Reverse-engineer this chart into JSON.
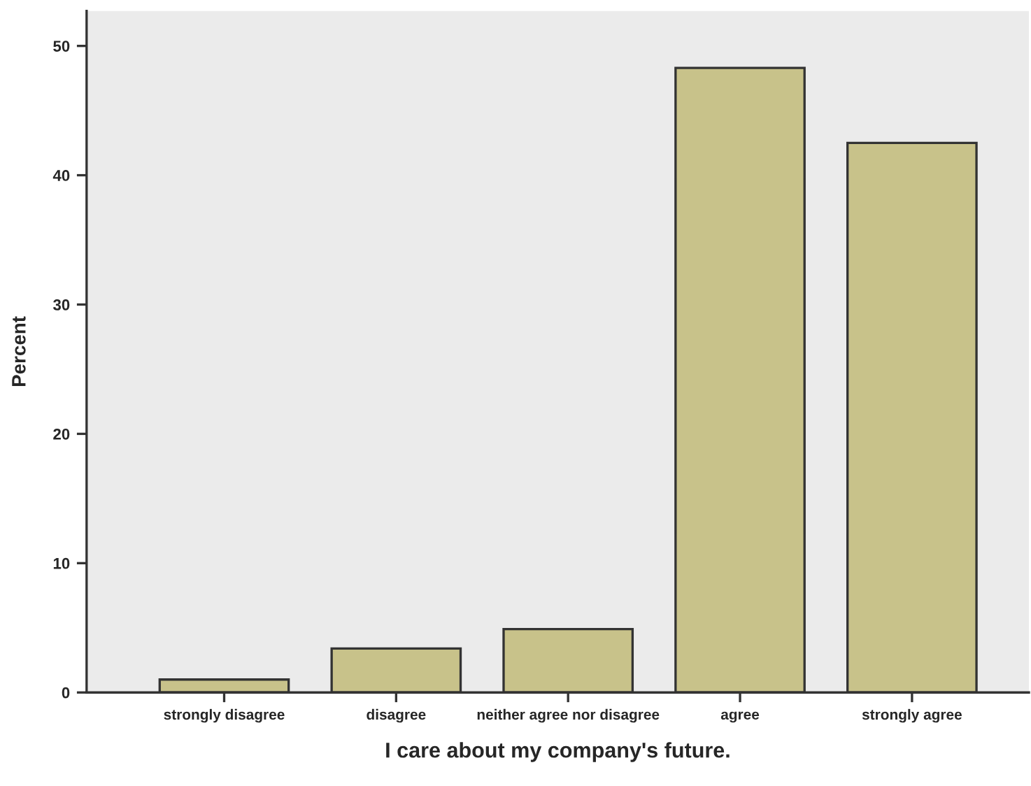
{
  "chart_data": {
    "type": "bar",
    "xlabel": "I care about my company's future.",
    "ylabel": "Percent",
    "categories": [
      "strongly disagree",
      "disagree",
      "neither agree nor disagree",
      "agree",
      "strongly agree"
    ],
    "values": [
      1.0,
      3.4,
      4.9,
      48.3,
      42.5
    ],
    "color": "#c8c28a",
    "ylim": [
      0,
      52.7
    ],
    "yticks": [
      0,
      10,
      20,
      30,
      40,
      50
    ],
    "grid": false,
    "legend": false
  }
}
